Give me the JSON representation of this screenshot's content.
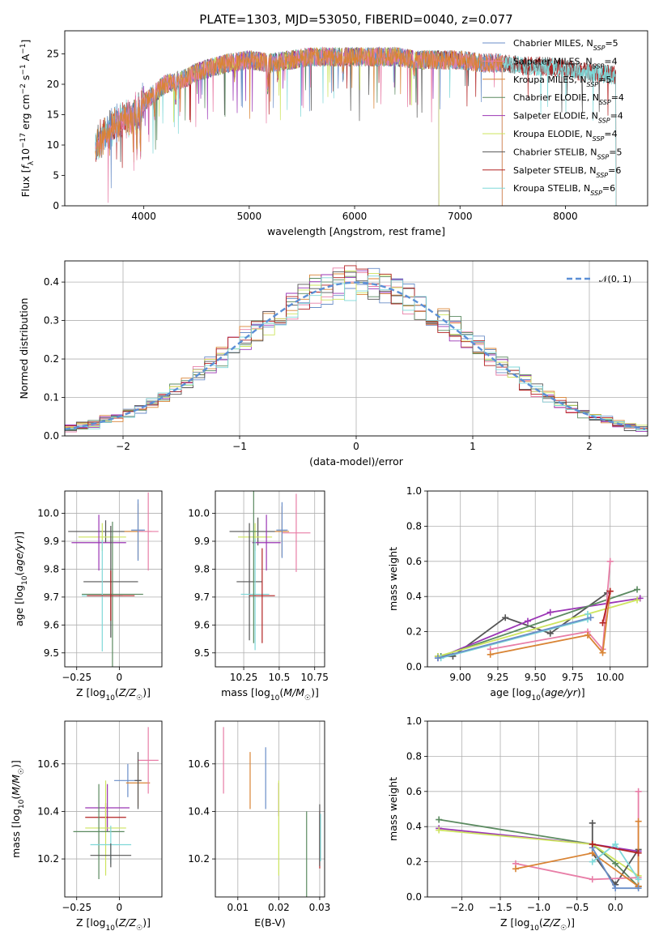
{
  "figure": {
    "title": "PLATE=1303, MJD=53050, FIBERID=0040, z=0.077"
  },
  "chart_data": [
    {
      "id": "spectrum",
      "type": "line",
      "xlabel": "wavelength [Angstrom, rest frame]",
      "ylabel": "Flux [f_λ 10^-17 erg cm^-2 s^-1 A^-1]",
      "xlim": [
        3250,
        8780
      ],
      "ylim": [
        0,
        28.8
      ],
      "xticks": [
        4000,
        5000,
        6000,
        7000,
        8000
      ],
      "yticks": [
        0,
        5,
        10,
        15,
        20,
        25
      ],
      "grid": false,
      "legend_position": "upper-right",
      "data_range": [
        3540,
        8480
      ],
      "continuum_knots": {
        "x": [
          3540,
          3600,
          3700,
          3800,
          3900,
          4000,
          4100,
          4200,
          4300,
          4400,
          4500,
          4600,
          4800,
          5000,
          5200,
          5400,
          5600,
          5800,
          6000,
          6200,
          6400,
          6600,
          6800,
          7000,
          7200,
          7400,
          7600,
          7800,
          8000,
          8200,
          8480
        ],
        "y": [
          10,
          11,
          13,
          14,
          15,
          17,
          18.5,
          20,
          20.5,
          21,
          22,
          22.5,
          23.5,
          24,
          23.5,
          24,
          24.5,
          24.5,
          24.5,
          24.5,
          24.5,
          24,
          24,
          24,
          23.5,
          23.5,
          23,
          23,
          22.5,
          22,
          21.5
        ]
      },
      "series": [
        {
          "name": "Chabrier MILES, N_SSP=5",
          "label_main": "Chabrier MILES, N",
          "label_sub": "SSP",
          "label_tail": "=5",
          "color": "#6a8ec8",
          "min_x": 3540,
          "max_x": 7400
        },
        {
          "name": "Salpeter MILES, N_SSP=4",
          "label_main": "Salpeter MILES, N",
          "label_sub": "SSP",
          "label_tail": "=4",
          "color": "#e87ea7",
          "min_x": 3540,
          "max_x": 7400
        },
        {
          "name": "Kroupa MILES, N_SSP=5",
          "label_main": "Kroupa MILES, N",
          "label_sub": "SSP",
          "label_tail": "=5",
          "color": "#d98435",
          "min_x": 3540,
          "max_x": 7400
        },
        {
          "name": "Chabrier ELODIE, N_SSP=4",
          "label_main": "Chabrier ELODIE, N",
          "label_sub": "SSP",
          "label_tail": "=4",
          "color": "#5b8a60",
          "min_x": 3900,
          "max_x": 6800
        },
        {
          "name": "Salpeter ELODIE, N_SSP=4",
          "label_main": "Salpeter ELODIE, N",
          "label_sub": "SSP",
          "label_tail": "=4",
          "color": "#9b36b5",
          "min_x": 3900,
          "max_x": 6800
        },
        {
          "name": "Kroupa ELODIE, N_SSP=4",
          "label_main": "Kroupa ELODIE, N",
          "label_sub": "SSP",
          "label_tail": "=4",
          "color": "#cde45e",
          "min_x": 3900,
          "max_x": 6800
        },
        {
          "name": "Chabrier STELIB, N_SSP=5",
          "label_main": "Chabrier STELIB, N",
          "label_sub": "SSP",
          "label_tail": "=5",
          "color": "#555555",
          "min_x": 3540,
          "max_x": 8480
        },
        {
          "name": "Salpeter STELIB, N_SSP=6",
          "label_main": "Salpeter STELIB, N",
          "label_sub": "SSP",
          "label_tail": "=6",
          "color": "#b22222",
          "min_x": 3540,
          "max_x": 8480
        },
        {
          "name": "Kroupa STELIB, N_SSP=6",
          "label_main": "Kroupa STELIB, N",
          "label_sub": "SSP",
          "label_tail": "=6",
          "color": "#7fd8d8",
          "min_x": 3540,
          "max_x": 8480
        }
      ]
    },
    {
      "id": "residuals",
      "type": "histogram",
      "xlabel": "(data-model)/error",
      "ylabel": "Normed distribution",
      "xlim": [
        -2.5,
        2.5
      ],
      "ylim": [
        0,
        0.455
      ],
      "xticks": [
        -2,
        -1,
        0,
        1,
        2
      ],
      "yticks": [
        0.0,
        0.1,
        0.2,
        0.3,
        0.4
      ],
      "grid": true,
      "legend_position": "upper-right",
      "legend": "𝒩(0, 1)",
      "legend_color": "#5b8fd6",
      "bin_width": 0.1
    },
    {
      "id": "age-vs-Z",
      "type": "errorbar",
      "xlabel": "Z [log10(Z/Z☉)]",
      "ylabel": "age  [log10(age/yr)]",
      "xlim": [
        -0.32,
        0.25
      ],
      "ylim": [
        9.45,
        10.08
      ],
      "xticks": [
        -0.25,
        0.0
      ],
      "yticks": [
        9.5,
        9.6,
        9.7,
        9.8,
        9.9,
        10.0
      ],
      "grid": true,
      "points": [
        {
          "x": -0.08,
          "y": 9.935,
          "xerr": 0.22,
          "yerr": 0.04,
          "color": "#555555"
        },
        {
          "x": -0.1,
          "y": 9.915,
          "xerr": 0.14,
          "yerr": 0.05,
          "color": "#cde45e"
        },
        {
          "x": -0.12,
          "y": 9.895,
          "xerr": 0.16,
          "yerr": 0.1,
          "color": "#9b36b5"
        },
        {
          "x": -0.05,
          "y": 9.755,
          "xerr": 0.16,
          "yerr": 0.2,
          "color": "#555555"
        },
        {
          "x": -0.04,
          "y": 9.71,
          "xerr": 0.18,
          "yerr": 0.26,
          "color": "#5b8a60"
        },
        {
          "x": -0.1,
          "y": 9.705,
          "xerr": 0.12,
          "yerr": 0.2,
          "color": "#7fd8d8"
        },
        {
          "x": -0.05,
          "y": 9.705,
          "xerr": 0.14,
          "yerr": 0.09,
          "color": "#b22222"
        },
        {
          "x": 0.11,
          "y": 9.935,
          "xerr": 0.08,
          "yerr": 0.1,
          "color": "#d98435"
        },
        {
          "x": 0.17,
          "y": 9.935,
          "xerr": 0.06,
          "yerr": 0.14,
          "color": "#e87ea7"
        },
        {
          "x": 0.11,
          "y": 9.94,
          "xerr": 0.04,
          "yerr": 0.11,
          "color": "#6a8ec8"
        }
      ]
    },
    {
      "id": "age-vs-mass",
      "type": "errorbar",
      "xlabel": "mass [log10(M/M☉)]",
      "ylabel": "",
      "xlim": [
        10.05,
        10.82
      ],
      "ylim": [
        9.45,
        10.08
      ],
      "xticks": [
        10.25,
        10.5,
        10.75
      ],
      "yticks": [
        9.5,
        9.6,
        9.7,
        9.8,
        9.9,
        10.0
      ],
      "grid": true,
      "points": [
        {
          "x": 10.35,
          "y": 9.935,
          "xerr": 0.2,
          "yerr": 0.05,
          "color": "#555555"
        },
        {
          "x": 10.33,
          "y": 9.915,
          "xerr": 0.12,
          "yerr": 0.05,
          "color": "#cde45e"
        },
        {
          "x": 10.41,
          "y": 9.895,
          "xerr": 0.1,
          "yerr": 0.1,
          "color": "#9b36b5"
        },
        {
          "x": 10.29,
          "y": 9.755,
          "xerr": 0.09,
          "yerr": 0.21,
          "color": "#555555"
        },
        {
          "x": 10.33,
          "y": 9.71,
          "xerr": 0.1,
          "yerr": 0.2,
          "color": "#7fd8d8"
        },
        {
          "x": 10.38,
          "y": 9.705,
          "xerr": 0.09,
          "yerr": 0.17,
          "color": "#b22222"
        },
        {
          "x": 10.52,
          "y": 9.935,
          "xerr": 0.05,
          "yerr": 0.09,
          "color": "#d98435"
        },
        {
          "x": 10.62,
          "y": 9.93,
          "xerr": 0.1,
          "yerr": 0.14,
          "color": "#e87ea7"
        },
        {
          "x": 10.52,
          "y": 9.94,
          "xerr": 0.04,
          "yerr": 0.1,
          "color": "#6a8ec8"
        },
        {
          "x": 10.32,
          "y": 9.935,
          "xerr": 0.03,
          "yerr": 0.4,
          "color": "#5b8a60"
        }
      ]
    },
    {
      "id": "weight-vs-age",
      "type": "line",
      "xlabel": "age  [log10(age/yr)]",
      "ylabel": "mass weight",
      "xlim": [
        8.78,
        10.25
      ],
      "ylim": [
        0,
        1.0
      ],
      "xticks": [
        9.0,
        9.25,
        9.5,
        9.75,
        10.0
      ],
      "xtick_labels": [
        "9.00",
        "9.25",
        "9.50",
        "9.75",
        "10.00"
      ],
      "yticks": [
        0.0,
        0.2,
        0.4,
        0.6,
        0.8,
        1.0
      ],
      "grid": true,
      "series": [
        {
          "color": "#555555",
          "x": [
            8.85,
            8.95,
            9.3,
            9.6,
            9.98
          ],
          "y": [
            0.06,
            0.06,
            0.28,
            0.19,
            0.42
          ]
        },
        {
          "color": "#9b36b5",
          "x": [
            8.85,
            9.45,
            9.6,
            10.2
          ],
          "y": [
            0.05,
            0.26,
            0.31,
            0.39
          ]
        },
        {
          "color": "#5b8a60",
          "x": [
            8.87,
            10.18
          ],
          "y": [
            0.06,
            0.44
          ]
        },
        {
          "color": "#cde45e",
          "x": [
            8.85,
            10.18
          ],
          "y": [
            0.06,
            0.38
          ]
        },
        {
          "color": "#7fd8d8",
          "x": [
            8.87,
            9.85,
            9.85
          ],
          "y": [
            0.05,
            0.27,
            0.3
          ]
        },
        {
          "color": "#6a8ec8",
          "x": [
            8.85,
            9.87
          ],
          "y": [
            0.05,
            0.28
          ]
        },
        {
          "color": "#e87ea7",
          "x": [
            9.2,
            9.85,
            9.95,
            10.0
          ],
          "y": [
            0.1,
            0.2,
            0.1,
            0.6
          ]
        },
        {
          "color": "#d98435",
          "x": [
            9.2,
            9.85,
            9.95,
            10.0
          ],
          "y": [
            0.07,
            0.18,
            0.08,
            0.43
          ]
        },
        {
          "color": "#b22222",
          "x": [
            9.95,
            10.0
          ],
          "y": [
            0.25,
            0.43
          ]
        }
      ]
    },
    {
      "id": "mass-vs-Z",
      "type": "errorbar",
      "xlabel": "Z [log10(Z/Z☉)]",
      "ylabel": "mass [log10(M/M☉)]",
      "xlim": [
        -0.32,
        0.25
      ],
      "ylim": [
        10.04,
        10.78
      ],
      "xticks": [
        -0.25,
        0.0
      ],
      "yticks": [
        10.2,
        10.4,
        10.6
      ],
      "grid": true,
      "points": [
        {
          "x": -0.07,
          "y": 10.415,
          "xerr": 0.13,
          "yerr": 0.1,
          "color": "#9b36b5"
        },
        {
          "x": -0.08,
          "y": 10.375,
          "xerr": 0.12,
          "yerr": 0.06,
          "color": "#b22222"
        },
        {
          "x": -0.08,
          "y": 10.33,
          "xerr": 0.12,
          "yerr": 0.2,
          "color": "#cde45e"
        },
        {
          "x": -0.12,
          "y": 10.315,
          "xerr": 0.15,
          "yerr": 0.2,
          "color": "#5b8a60"
        },
        {
          "x": -0.05,
          "y": 10.26,
          "xerr": 0.12,
          "yerr": 0.08,
          "color": "#7fd8d8"
        },
        {
          "x": -0.05,
          "y": 10.215,
          "xerr": 0.12,
          "yerr": 0.05,
          "color": "#555555"
        },
        {
          "x": 0.05,
          "y": 10.53,
          "xerr": 0.08,
          "yerr": 0.07,
          "color": "#6a8ec8"
        },
        {
          "x": 0.11,
          "y": 10.52,
          "xerr": 0.07,
          "yerr": 0.1,
          "color": "#d98435"
        },
        {
          "x": 0.17,
          "y": 10.615,
          "xerr": 0.06,
          "yerr": 0.14,
          "color": "#e87ea7"
        },
        {
          "x": 0.11,
          "y": 10.53,
          "xerr": 0.02,
          "yerr": 0.12,
          "color": "#555555"
        }
      ]
    },
    {
      "id": "mass-vs-EBV",
      "type": "errorbar",
      "xlabel": "E(B-V)",
      "ylabel": "",
      "xlim": [
        0.0045,
        0.0312
      ],
      "ylim": [
        10.04,
        10.78
      ],
      "xticks": [
        0.01,
        0.02,
        0.03
      ],
      "yticks": [
        10.2,
        10.4,
        10.6
      ],
      "grid": true,
      "points": [
        {
          "x": 0.0065,
          "y": 10.615,
          "xerr": 0.0,
          "yerr": 0.14,
          "color": "#e87ea7"
        },
        {
          "x": 0.013,
          "y": 10.53,
          "xerr": 0.0,
          "yerr": 0.12,
          "color": "#d98435"
        },
        {
          "x": 0.0168,
          "y": 10.54,
          "xerr": 0.0,
          "yerr": 0.13,
          "color": "#6a8ec8"
        },
        {
          "x": 0.02,
          "y": 10.45,
          "xerr": 0.0,
          "yerr": 0.07,
          "color": "#9b36b5"
        },
        {
          "x": 0.02,
          "y": 10.33,
          "xerr": 0.0,
          "yerr": 0.2,
          "color": "#cde45e"
        },
        {
          "x": 0.0268,
          "y": 10.18,
          "xerr": 0.0,
          "yerr": 0.22,
          "color": "#5b8a60"
        },
        {
          "x": 0.03,
          "y": 10.28,
          "xerr": 0.0,
          "yerr": 0.12,
          "color": "#b22222"
        },
        {
          "x": 0.03,
          "y": 10.3,
          "xerr": 0.0,
          "yerr": 0.13,
          "color": "#555555"
        },
        {
          "x": 0.0302,
          "y": 10.29,
          "xerr": 0.0,
          "yerr": 0.1,
          "color": "#7fd8d8"
        }
      ]
    },
    {
      "id": "weight-vs-Z",
      "type": "line",
      "xlabel": "Z [log10(Z/Z☉)]",
      "ylabel": "mass weight",
      "xlim": [
        -2.45,
        0.42
      ],
      "ylim": [
        0,
        1.0
      ],
      "xticks": [
        -2.0,
        -1.5,
        -1.0,
        -0.5,
        0.0
      ],
      "xtick_labels": [
        "−2.0",
        "−1.5",
        "−1.0",
        "−0.5",
        "0.0"
      ],
      "yticks": [
        0.0,
        0.2,
        0.4,
        0.6,
        0.8,
        1.0
      ],
      "grid": true,
      "series": [
        {
          "color": "#5b8a60",
          "x": [
            -2.3,
            -0.3,
            0.0,
            0.3
          ],
          "y": [
            0.44,
            0.3,
            0.19,
            0.06
          ]
        },
        {
          "color": "#9b36b5",
          "x": [
            -2.3,
            -0.3,
            0.3
          ],
          "y": [
            0.39,
            0.3,
            0.26
          ]
        },
        {
          "color": "#cde45e",
          "x": [
            -2.3,
            -0.3,
            0.3
          ],
          "y": [
            0.38,
            0.3,
            0.12
          ]
        },
        {
          "color": "#555555",
          "x": [
            -0.3,
            -0.3,
            0.0,
            0.3,
            0.3
          ],
          "y": [
            0.42,
            0.25,
            0.07,
            0.27,
            0.06
          ]
        },
        {
          "color": "#e87ea7",
          "x": [
            -1.3,
            -0.3,
            0.3,
            0.3
          ],
          "y": [
            0.19,
            0.1,
            0.11,
            0.6
          ]
        },
        {
          "color": "#d98435",
          "x": [
            -1.3,
            -0.3,
            0.3,
            0.3
          ],
          "y": [
            0.16,
            0.25,
            0.06,
            0.43
          ]
        },
        {
          "color": "#7fd8d8",
          "x": [
            -0.3,
            0.0,
            0.3
          ],
          "y": [
            0.2,
            0.3,
            0.1
          ]
        },
        {
          "color": "#6a8ec8",
          "x": [
            -0.3,
            0.0,
            0.3
          ],
          "y": [
            0.28,
            0.05,
            0.05
          ]
        },
        {
          "color": "#b22222",
          "x": [
            -0.3,
            0.3
          ],
          "y": [
            0.3,
            0.25
          ]
        }
      ]
    }
  ]
}
